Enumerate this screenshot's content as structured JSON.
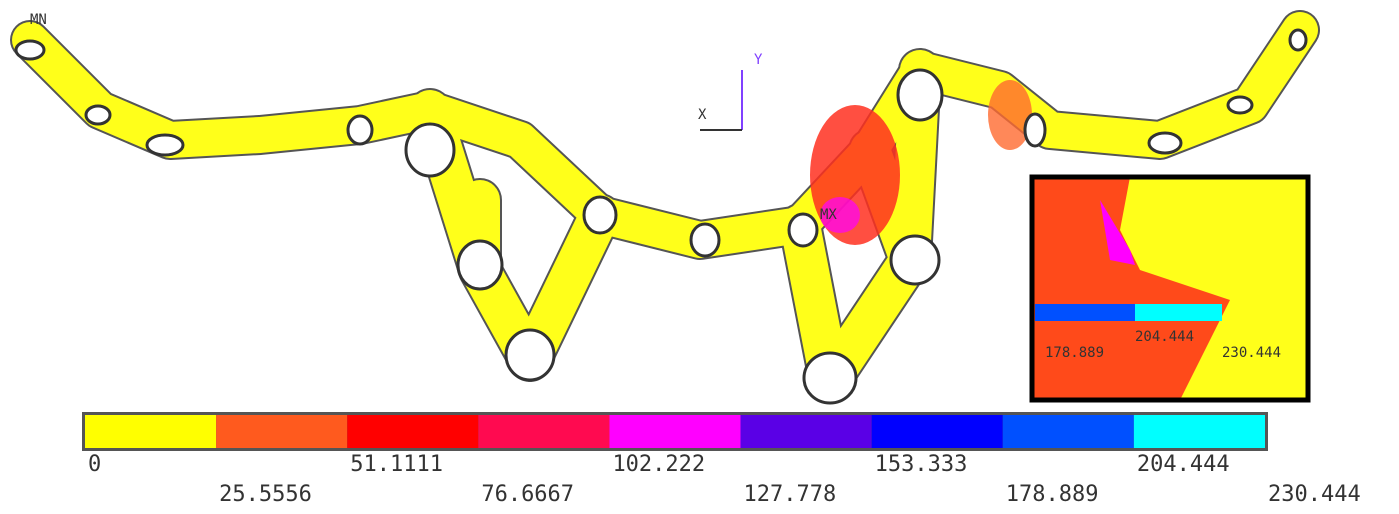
{
  "labels": {
    "min": "MN",
    "max": "MX",
    "axis_x": "X",
    "axis_y": "Y"
  },
  "legend": {
    "colors": [
      "#ffff00",
      "#ff5a1e",
      "#ff0000",
      "#ff0a50",
      "#ff00ff",
      "#5a00e6",
      "#0000ff",
      "#0050ff",
      "#00ffff"
    ],
    "ticks": [
      "0",
      "25.5556",
      "51.1111",
      "76.6667",
      "102.222",
      "127.778",
      "153.333",
      "178.889",
      "204.444",
      "230.444"
    ]
  },
  "inset": {
    "labels": [
      "204.444",
      "178.889",
      "230.444"
    ]
  }
}
